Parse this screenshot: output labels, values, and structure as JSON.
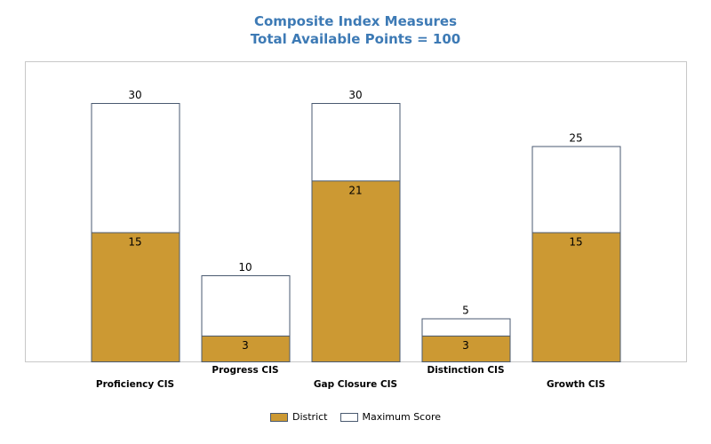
{
  "chart_data": {
    "type": "bar",
    "title": "Composite Index Measures",
    "subtitle": "Total Available Points = 100",
    "categories": [
      "Proficiency CIS",
      "Progress CIS",
      "Gap Closure CIS",
      "Distinction CIS",
      "Growth CIS"
    ],
    "series": [
      {
        "name": "District",
        "values": [
          15,
          3,
          21,
          3,
          15
        ],
        "color": "#cc9933"
      },
      {
        "name": "Maximum Score",
        "values": [
          30,
          10,
          30,
          5,
          25
        ],
        "color": "#ffffff"
      }
    ],
    "ylim": [
      0,
      35
    ],
    "grid": false,
    "legend_position": "bottom-center",
    "colors": {
      "title": "#3d7ab5",
      "bar_border": "#4a5a70",
      "frame": "#c8c8c8"
    }
  }
}
